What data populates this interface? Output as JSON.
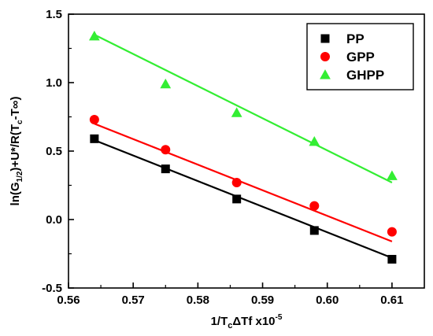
{
  "chart_data": {
    "type": "scatter",
    "title": "",
    "xlabel": {
      "main": "1/T",
      "sub": "c",
      "rest": "ΔTf x10",
      "sup": "-5"
    },
    "ylabel": {
      "parts": [
        {
          "text": "ln(G",
          "style": "normal"
        },
        {
          "text": "1/2",
          "style": "sub"
        },
        {
          "text": ")+U*/R(T",
          "style": "normal"
        },
        {
          "text": "c",
          "style": "sub"
        },
        {
          "text": "-T",
          "style": "normal"
        },
        {
          "text": "∞",
          "style": "normal"
        },
        {
          "text": ")",
          "style": "normal"
        }
      ]
    },
    "xlim": [
      0.56,
      0.615
    ],
    "ylim": [
      -0.5,
      1.5
    ],
    "xticks": [
      0.56,
      0.57,
      0.58,
      0.59,
      0.6,
      0.61
    ],
    "xtick_labels": [
      "0.56",
      "0.57",
      "0.58",
      "0.59",
      "0.60",
      "0.61"
    ],
    "yticks": [
      -0.5,
      0.0,
      0.5,
      1.0,
      1.5
    ],
    "ytick_labels": [
      "-0.5",
      "0.0",
      "0.5",
      "1.0",
      "1.5"
    ],
    "grid": false,
    "legend_position": "top-right",
    "series": [
      {
        "name": "PP",
        "marker": "square",
        "color": "#000000",
        "x": [
          0.564,
          0.575,
          0.586,
          0.598,
          0.61
        ],
        "y": [
          0.59,
          0.37,
          0.15,
          -0.08,
          -0.29
        ],
        "fit": {
          "x": [
            0.564,
            0.61
          ],
          "y": [
            0.58,
            -0.28
          ]
        }
      },
      {
        "name": "GPP",
        "marker": "circle",
        "color": "#ff0000",
        "x": [
          0.564,
          0.575,
          0.586,
          0.598,
          0.61
        ],
        "y": [
          0.73,
          0.51,
          0.27,
          0.1,
          -0.09
        ],
        "fit": {
          "x": [
            0.564,
            0.61
          ],
          "y": [
            0.7,
            -0.16
          ]
        }
      },
      {
        "name": "GHPP",
        "marker": "triangle",
        "color": "#33ee33",
        "x": [
          0.564,
          0.575,
          0.586,
          0.598,
          0.61
        ],
        "y": [
          1.34,
          0.99,
          0.78,
          0.57,
          0.32
        ],
        "fit": {
          "x": [
            0.564,
            0.61
          ],
          "y": [
            1.35,
            0.27
          ]
        }
      }
    ]
  }
}
